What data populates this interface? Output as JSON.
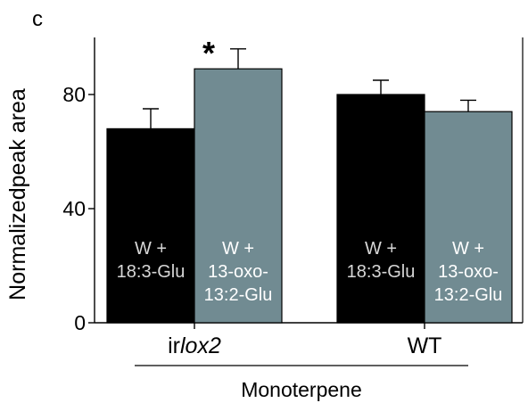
{
  "panel_label": "c",
  "chart_data": {
    "type": "bar",
    "ylabel": "Normalizedpeak area",
    "xlabel": "Monoterpene",
    "ylim": [
      0,
      100
    ],
    "yticks": [
      0,
      40,
      80
    ],
    "groups": [
      {
        "name": "irlox2",
        "name_prefix": "ir",
        "name_italic": "lox2",
        "bars": [
          {
            "label_lines": [
              "W +",
              "18:3-Glu"
            ],
            "value": 68,
            "error": 7,
            "color": "#000000",
            "text_color": "#d6d6d6",
            "significant": false
          },
          {
            "label_lines": [
              "W +",
              "13-oxo-",
              "13:2-Glu"
            ],
            "value": 89,
            "error": 7,
            "color": "#718b92",
            "text_color": "#ffffff",
            "significant": true
          }
        ]
      },
      {
        "name": "WT",
        "name_prefix": "WT",
        "name_italic": "",
        "bars": [
          {
            "label_lines": [
              "W +",
              "18:3-Glu"
            ],
            "value": 80,
            "error": 5,
            "color": "#000000",
            "text_color": "#d6d6d6",
            "significant": false
          },
          {
            "label_lines": [
              "W +",
              "13-oxo-",
              "13:2-Glu"
            ],
            "value": 74,
            "error": 4,
            "color": "#718b92",
            "text_color": "#ffffff",
            "significant": false
          }
        ]
      }
    ],
    "significance_marker": "*"
  }
}
